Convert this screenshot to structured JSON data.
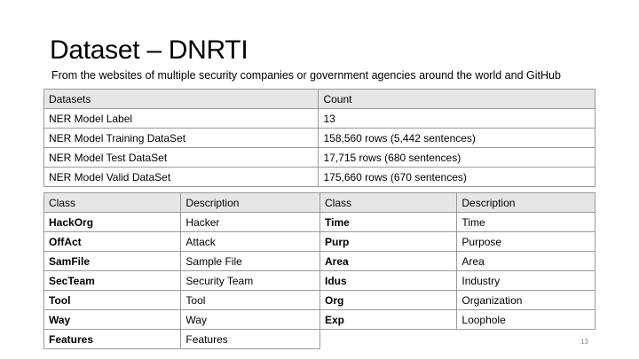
{
  "slide": {
    "title": "Dataset – DNRTI",
    "subtitle": "From the websites of multiple security companies or government agencies around the world and GitHub",
    "page_number": "13"
  },
  "dataset_table": {
    "headers": [
      "Datasets",
      "Count"
    ],
    "rows": [
      [
        "NER Model Label",
        "13"
      ],
      [
        "NER Model Training DataSet",
        "158,560 rows (5,442 sentences)"
      ],
      [
        "NER Model Test DataSet",
        "17,715 rows (680 sentences)"
      ],
      [
        "NER Model Valid DataSet",
        "175,660 rows (670 sentences)"
      ]
    ]
  },
  "class_table_left": {
    "headers": [
      "Class",
      "Description"
    ],
    "rows": [
      [
        "HackOrg",
        "Hacker"
      ],
      [
        "OffAct",
        "Attack"
      ],
      [
        "SamFile",
        "Sample File"
      ],
      [
        "SecTeam",
        "Security Team"
      ],
      [
        "Tool",
        "Tool"
      ],
      [
        "Way",
        "Way"
      ],
      [
        "Features",
        "Features"
      ]
    ]
  },
  "class_table_right": {
    "headers": [
      "Class",
      "Description"
    ],
    "rows": [
      [
        "Time",
        "Time"
      ],
      [
        "Purp",
        "Purpose"
      ],
      [
        "Area",
        "Area"
      ],
      [
        "Idus",
        "Industry"
      ],
      [
        "Org",
        "Organization"
      ],
      [
        "Exp",
        "Loophole"
      ]
    ]
  }
}
